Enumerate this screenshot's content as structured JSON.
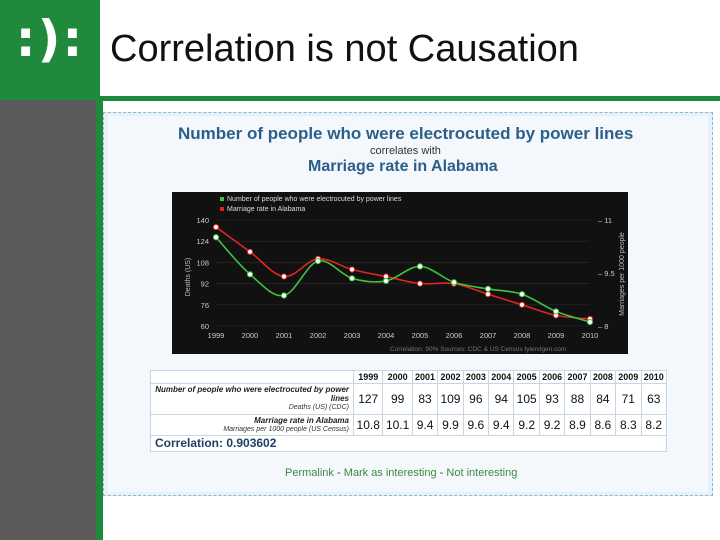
{
  "slide": {
    "logo": ":):",
    "title": "Correlation is not Causation"
  },
  "figure": {
    "title_main": "Number of people who were electrocuted by power lines",
    "title_sub": "correlates with",
    "title_second": "Marriage rate in Alabama",
    "footer": {
      "permalink": "Permalink",
      "sep1": " - ",
      "mark": "Mark as interesting",
      "sep2": " - ",
      "not_interesting": "Not interesting"
    },
    "credit": "Correlation: 90%   Sources: CDC & US Census   tylervigen.com"
  },
  "table": {
    "row1_label": "Number of people who were electrocuted by power lines",
    "row1_sub": "Deaths (US) (CDC)",
    "row2_label": "Marriage rate in Alabama",
    "row2_sub": "Marriages per 1000 people (US Census)",
    "correlation": "Correlation: 0.903602"
  },
  "chart_data": {
    "type": "line",
    "x": [
      "1999",
      "2000",
      "2001",
      "2002",
      "2003",
      "2004",
      "2005",
      "2006",
      "2007",
      "2008",
      "2009",
      "2010"
    ],
    "series": [
      {
        "name": "Number of people who were electrocuted by power lines",
        "axis": "left",
        "color": "#3ec43e",
        "values": [
          127,
          99,
          83,
          109,
          96,
          94,
          105,
          93,
          88,
          84,
          71,
          63
        ]
      },
      {
        "name": "Marriage rate in Alabama",
        "axis": "right",
        "color": "#e02424",
        "values": [
          10.8,
          10.1,
          9.4,
          9.9,
          9.6,
          9.4,
          9.2,
          9.2,
          8.9,
          8.6,
          8.3,
          8.2
        ]
      }
    ],
    "ylabel_left": "Deaths (US)",
    "ylabel_right": "Marriages per 1000 people",
    "ylim_left": [
      60,
      140
    ],
    "yticks_left": [
      "140",
      "124",
      "108",
      "92",
      "76",
      "60"
    ],
    "ylim_right": [
      8,
      11
    ],
    "yticks_right": [
      "11",
      "9.5",
      "8"
    ],
    "legend_placement": "top-left",
    "background": "#111111"
  }
}
